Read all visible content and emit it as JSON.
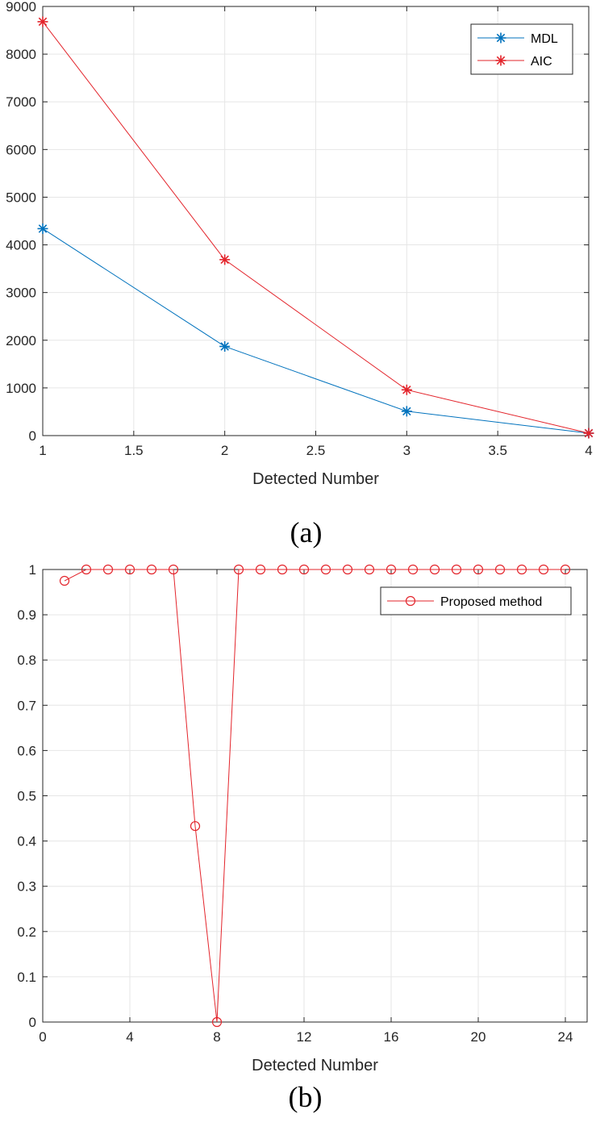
{
  "chart_data": [
    {
      "type": "line",
      "caption": "(a)",
      "xlabel": "Detected Number",
      "ylabel": "",
      "xlim": [
        1,
        4
      ],
      "ylim": [
        0,
        9000
      ],
      "xticks": [
        "1",
        "1.5",
        "2",
        "2.5",
        "3",
        "3.5",
        "4"
      ],
      "xtick_values": [
        1,
        1.5,
        2,
        2.5,
        3,
        3.5,
        4
      ],
      "yticks": [
        "0",
        "1000",
        "2000",
        "3000",
        "4000",
        "5000",
        "6000",
        "7000",
        "8000",
        "9000"
      ],
      "ytick_values": [
        0,
        1000,
        2000,
        3000,
        4000,
        5000,
        6000,
        7000,
        8000,
        9000
      ],
      "grid": true,
      "legend": "top-right",
      "x": [
        1,
        2,
        3,
        4
      ],
      "series": [
        {
          "name": "MDL",
          "color": "#0072BD",
          "marker": "asterisk",
          "values": [
            4340,
            1870,
            510,
            50
          ]
        },
        {
          "name": "AIC",
          "color": "#E3242B",
          "marker": "asterisk",
          "values": [
            8680,
            3690,
            960,
            50
          ]
        }
      ]
    },
    {
      "type": "line",
      "caption": "(b)",
      "xlabel": "Detected Number",
      "ylabel": "",
      "xlim": [
        0,
        25
      ],
      "ylim": [
        0,
        1
      ],
      "xticks": [
        "0",
        "4",
        "8",
        "12",
        "16",
        "20",
        "24"
      ],
      "xtick_values": [
        0,
        4,
        8,
        12,
        16,
        20,
        24
      ],
      "yticks": [
        "0",
        "0.1",
        "0.2",
        "0.3",
        "0.4",
        "0.5",
        "0.6",
        "0.7",
        "0.8",
        "0.9",
        "1"
      ],
      "ytick_values": [
        0,
        0.1,
        0.2,
        0.3,
        0.4,
        0.5,
        0.6,
        0.7,
        0.8,
        0.9,
        1
      ],
      "grid": true,
      "legend": "top-right",
      "x": [
        1,
        2,
        3,
        4,
        5,
        6,
        7,
        8,
        9,
        10,
        11,
        12,
        13,
        14,
        15,
        16,
        17,
        18,
        19,
        20,
        21,
        22,
        23,
        24
      ],
      "series": [
        {
          "name": "Proposed method",
          "color": "#E3242B",
          "marker": "circle",
          "values": [
            0.975,
            1,
            1,
            1,
            1,
            1,
            0.433,
            0,
            1,
            1,
            1,
            1,
            1,
            1,
            1,
            1,
            1,
            1,
            1,
            1,
            1,
            1,
            1,
            1
          ]
        }
      ]
    }
  ]
}
